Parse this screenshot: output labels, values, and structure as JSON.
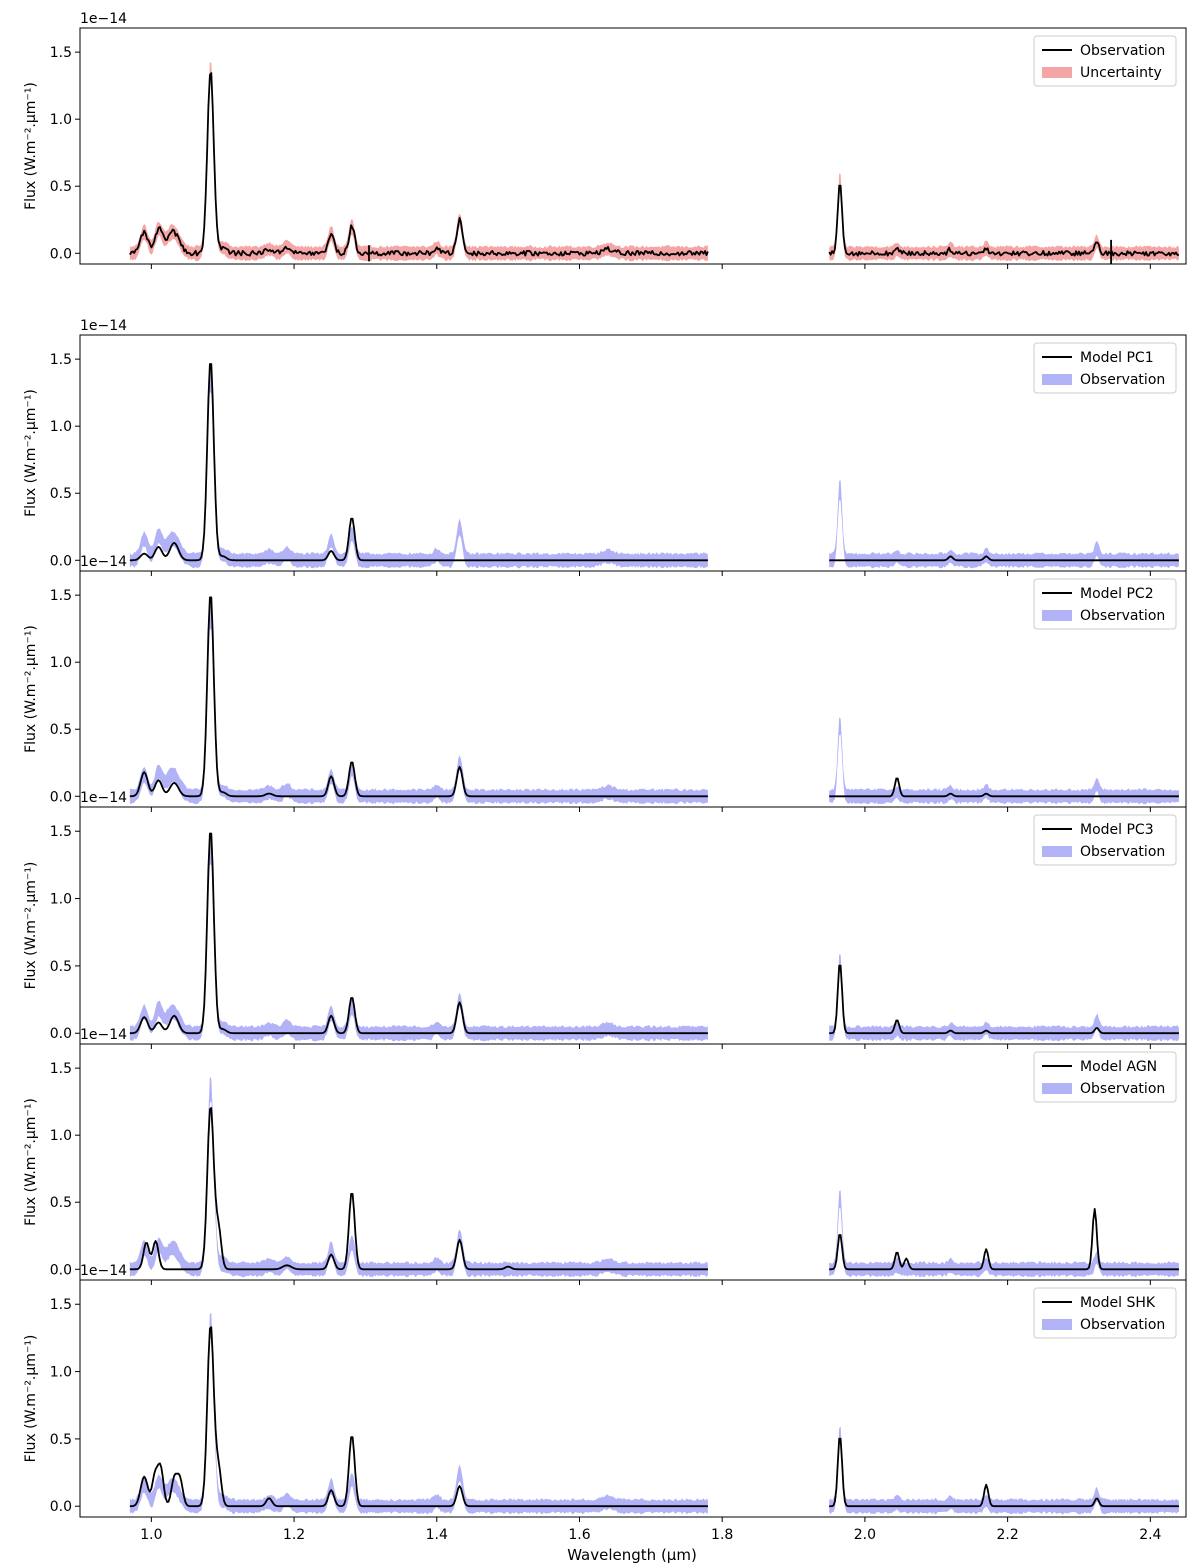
{
  "figure": {
    "xlabel": "Wavelength (μm)",
    "ylabel": "Flux (W.m⁻².μm⁻¹)",
    "offset_text": "1e−14"
  },
  "chart_data": [
    {
      "type": "line",
      "panel": "observation",
      "xlim": [
        0.9,
        2.45
      ],
      "ylim": [
        -0.08,
        1.68
      ],
      "yscale": "1e-14",
      "xticks": [
        1.0,
        1.2,
        1.4,
        1.6,
        1.8,
        2.0,
        2.2,
        2.4
      ],
      "xtick_labels": [
        "1.0",
        "1.2",
        "1.4",
        "1.6",
        "1.8",
        "2.0",
        "2.2",
        "2.4"
      ],
      "show_xtick_labels": false,
      "yticks": [
        0.0,
        0.5,
        1.0,
        1.5
      ],
      "ytick_labels": [
        "0.0",
        "0.5",
        "1.0",
        "1.5"
      ],
      "legend": {
        "position": "top-right",
        "entries": [
          {
            "label": "Observation",
            "kind": "line",
            "color": "#000000"
          },
          {
            "label": "Uncertainty",
            "kind": "band",
            "color": "#f4a6a6"
          }
        ]
      },
      "band_color": "#f4a6a6",
      "band_halfwidth": 0.06,
      "segments": [
        [
          0.97,
          1.78
        ],
        [
          1.95,
          2.44
        ]
      ],
      "series": [
        {
          "name": "Observation",
          "color": "#000000",
          "peaks": [
            [
              0.99,
              0.16,
              0.005
            ],
            [
              1.01,
              0.17,
              0.005
            ],
            [
              1.03,
              0.16,
              0.009
            ],
            [
              1.083,
              1.37,
              0.0045
            ],
            [
              1.1,
              0.04,
              0.006
            ],
            [
              1.165,
              0.03,
              0.006
            ],
            [
              1.19,
              0.05,
              0.005
            ],
            [
              1.252,
              0.15,
              0.004
            ],
            [
              1.281,
              0.2,
              0.004
            ],
            [
              1.4,
              0.04,
              0.004
            ],
            [
              1.432,
              0.25,
              0.004
            ],
            [
              1.64,
              0.03,
              0.008
            ],
            [
              1.965,
              0.55,
              0.003
            ],
            [
              2.045,
              0.03,
              0.003
            ],
            [
              2.12,
              0.03,
              0.003
            ],
            [
              2.17,
              0.04,
              0.003
            ],
            [
              2.325,
              0.09,
              0.003
            ]
          ],
          "noise": 0.018,
          "spikes": [
            [
              1.305,
              0.06
            ],
            [
              2.345,
              0.1
            ]
          ]
        }
      ]
    },
    {
      "type": "line",
      "panel": "model-pc1",
      "xlim": [
        0.9,
        2.45
      ],
      "ylim": [
        -0.08,
        1.68
      ],
      "yscale": "1e-14",
      "xticks": [
        1.0,
        1.2,
        1.4,
        1.6,
        1.8,
        2.0,
        2.2,
        2.4
      ],
      "xtick_labels": [
        "1.0",
        "1.2",
        "1.4",
        "1.6",
        "1.8",
        "2.0",
        "2.2",
        "2.4"
      ],
      "show_xtick_labels": false,
      "yticks": [
        0.0,
        0.5,
        1.0,
        1.5
      ],
      "ytick_labels": [
        "0.0",
        "0.5",
        "1.0",
        "1.5"
      ],
      "legend": {
        "position": "top-right",
        "entries": [
          {
            "label": "Model PC1",
            "kind": "line",
            "color": "#000000"
          },
          {
            "label": "Observation",
            "kind": "band",
            "color": "#b2b2f6"
          }
        ]
      },
      "band_color": "#b2b2f6",
      "band_halfwidth": 0.06,
      "segments": [
        [
          0.97,
          1.78
        ],
        [
          1.95,
          2.44
        ]
      ],
      "series": [
        {
          "name": "Model PC1",
          "color": "#000000",
          "peaks": [
            [
              0.99,
              0.05,
              0.005
            ],
            [
              1.01,
              0.1,
              0.005
            ],
            [
              1.032,
              0.13,
              0.006
            ],
            [
              1.083,
              1.5,
              0.0045
            ],
            [
              1.1,
              0.03,
              0.005
            ],
            [
              1.252,
              0.07,
              0.004
            ],
            [
              1.281,
              0.32,
              0.004
            ],
            [
              2.12,
              0.03,
              0.003
            ],
            [
              2.17,
              0.03,
              0.003
            ]
          ],
          "noise": 0,
          "spikes": []
        }
      ]
    },
    {
      "type": "line",
      "panel": "model-pc2",
      "xlim": [
        0.9,
        2.45
      ],
      "ylim": [
        -0.08,
        1.68
      ],
      "yscale": "1e-14",
      "xticks": [
        1.0,
        1.2,
        1.4,
        1.6,
        1.8,
        2.0,
        2.2,
        2.4
      ],
      "xtick_labels": [
        "1.0",
        "1.2",
        "1.4",
        "1.6",
        "1.8",
        "2.0",
        "2.2",
        "2.4"
      ],
      "show_xtick_labels": false,
      "yticks": [
        0.0,
        0.5,
        1.0,
        1.5
      ],
      "ytick_labels": [
        "0.0",
        "0.5",
        "1.0",
        "1.5"
      ],
      "legend": {
        "position": "top-right",
        "entries": [
          {
            "label": "Model PC2",
            "kind": "line",
            "color": "#000000"
          },
          {
            "label": "Observation",
            "kind": "band",
            "color": "#b2b2f6"
          }
        ]
      },
      "band_color": "#b2b2f6",
      "band_halfwidth": 0.06,
      "segments": [
        [
          0.97,
          1.78
        ],
        [
          1.95,
          2.44
        ]
      ],
      "series": [
        {
          "name": "Model PC2",
          "color": "#000000",
          "peaks": [
            [
              0.99,
              0.18,
              0.005
            ],
            [
              1.01,
              0.12,
              0.005
            ],
            [
              1.032,
              0.1,
              0.006
            ],
            [
              1.083,
              1.52,
              0.0045
            ],
            [
              1.1,
              0.03,
              0.005
            ],
            [
              1.165,
              0.02,
              0.005
            ],
            [
              1.252,
              0.15,
              0.004
            ],
            [
              1.281,
              0.26,
              0.004
            ],
            [
              1.432,
              0.22,
              0.004
            ],
            [
              2.045,
              0.14,
              0.003
            ],
            [
              2.12,
              0.02,
              0.003
            ],
            [
              2.17,
              0.02,
              0.003
            ]
          ],
          "noise": 0,
          "spikes": []
        }
      ]
    },
    {
      "type": "line",
      "panel": "model-pc3",
      "xlim": [
        0.9,
        2.45
      ],
      "ylim": [
        -0.08,
        1.68
      ],
      "yscale": "1e-14",
      "xticks": [
        1.0,
        1.2,
        1.4,
        1.6,
        1.8,
        2.0,
        2.2,
        2.4
      ],
      "xtick_labels": [
        "1.0",
        "1.2",
        "1.4",
        "1.6",
        "1.8",
        "2.0",
        "2.2",
        "2.4"
      ],
      "show_xtick_labels": false,
      "yticks": [
        0.0,
        0.5,
        1.0,
        1.5
      ],
      "ytick_labels": [
        "0.0",
        "0.5",
        "1.0",
        "1.5"
      ],
      "legend": {
        "position": "top-right",
        "entries": [
          {
            "label": "Model PC3",
            "kind": "line",
            "color": "#000000"
          },
          {
            "label": "Observation",
            "kind": "band",
            "color": "#b2b2f6"
          }
        ]
      },
      "band_color": "#b2b2f6",
      "band_halfwidth": 0.06,
      "segments": [
        [
          0.97,
          1.78
        ],
        [
          1.95,
          2.44
        ]
      ],
      "series": [
        {
          "name": "Model PC3",
          "color": "#000000",
          "peaks": [
            [
              0.99,
              0.12,
              0.005
            ],
            [
              1.01,
              0.08,
              0.005
            ],
            [
              1.032,
              0.13,
              0.006
            ],
            [
              1.083,
              1.52,
              0.0045
            ],
            [
              1.1,
              0.03,
              0.005
            ],
            [
              1.252,
              0.13,
              0.004
            ],
            [
              1.281,
              0.27,
              0.004
            ],
            [
              1.432,
              0.23,
              0.004
            ],
            [
              1.965,
              0.53,
              0.003
            ],
            [
              2.045,
              0.1,
              0.003
            ],
            [
              2.12,
              0.02,
              0.003
            ],
            [
              2.17,
              0.02,
              0.003
            ],
            [
              2.325,
              0.04,
              0.003
            ]
          ],
          "noise": 0,
          "spikes": []
        }
      ]
    },
    {
      "type": "line",
      "panel": "model-agn",
      "xlim": [
        0.9,
        2.45
      ],
      "ylim": [
        -0.08,
        1.68
      ],
      "yscale": "1e-14",
      "xticks": [
        1.0,
        1.2,
        1.4,
        1.6,
        1.8,
        2.0,
        2.2,
        2.4
      ],
      "xtick_labels": [
        "1.0",
        "1.2",
        "1.4",
        "1.6",
        "1.8",
        "2.0",
        "2.2",
        "2.4"
      ],
      "show_xtick_labels": false,
      "yticks": [
        0.0,
        0.5,
        1.0,
        1.5
      ],
      "ytick_labels": [
        "0.0",
        "0.5",
        "1.0",
        "1.5"
      ],
      "legend": {
        "position": "top-right",
        "entries": [
          {
            "label": "Model AGN",
            "kind": "line",
            "color": "#000000"
          },
          {
            "label": "Observation",
            "kind": "band",
            "color": "#b2b2f6"
          }
        ]
      },
      "band_color": "#b2b2f6",
      "band_halfwidth": 0.06,
      "segments": [
        [
          0.97,
          1.78
        ],
        [
          1.95,
          2.44
        ]
      ],
      "series": [
        {
          "name": "Model AGN",
          "color": "#000000",
          "peaks": [
            [
              0.993,
              0.2,
              0.004
            ],
            [
              1.006,
              0.21,
              0.004
            ],
            [
              1.083,
              1.22,
              0.0045
            ],
            [
              1.094,
              0.3,
              0.004
            ],
            [
              1.19,
              0.03,
              0.006
            ],
            [
              1.252,
              0.11,
              0.004
            ],
            [
              1.281,
              0.58,
              0.004
            ],
            [
              1.432,
              0.22,
              0.004
            ],
            [
              1.5,
              0.02,
              0.004
            ],
            [
              1.965,
              0.27,
              0.003
            ],
            [
              2.045,
              0.13,
              0.003
            ],
            [
              2.058,
              0.08,
              0.003
            ],
            [
              2.17,
              0.15,
              0.003
            ],
            [
              2.322,
              0.45,
              0.003
            ]
          ],
          "noise": 0,
          "spikes": []
        }
      ]
    },
    {
      "type": "line",
      "panel": "model-shk",
      "xlim": [
        0.9,
        2.45
      ],
      "ylim": [
        -0.08,
        1.68
      ],
      "yscale": "1e-14",
      "xticks": [
        1.0,
        1.2,
        1.4,
        1.6,
        1.8,
        2.0,
        2.2,
        2.4
      ],
      "xtick_labels": [
        "1.0",
        "1.2",
        "1.4",
        "1.6",
        "1.8",
        "2.0",
        "2.2",
        "2.4"
      ],
      "show_xtick_labels": true,
      "yticks": [
        0.0,
        0.5,
        1.0,
        1.5
      ],
      "ytick_labels": [
        "0.0",
        "0.5",
        "1.0",
        "1.5"
      ],
      "legend": {
        "position": "top-right",
        "entries": [
          {
            "label": "Model SHK",
            "kind": "line",
            "color": "#000000"
          },
          {
            "label": "Observation",
            "kind": "band",
            "color": "#b2b2f6"
          }
        ]
      },
      "band_color": "#b2b2f6",
      "band_halfwidth": 0.06,
      "segments": [
        [
          0.97,
          1.78
        ],
        [
          1.95,
          2.44
        ]
      ],
      "series": [
        {
          "name": "Model SHK",
          "color": "#000000",
          "peaks": [
            [
              0.99,
              0.22,
              0.005
            ],
            [
              1.005,
              0.22,
              0.004
            ],
            [
              1.013,
              0.28,
              0.004
            ],
            [
              1.032,
              0.2,
              0.004
            ],
            [
              1.04,
              0.2,
              0.004
            ],
            [
              1.083,
              1.35,
              0.0045
            ],
            [
              1.094,
              0.28,
              0.004
            ],
            [
              1.165,
              0.06,
              0.004
            ],
            [
              1.252,
              0.12,
              0.004
            ],
            [
              1.281,
              0.53,
              0.004
            ],
            [
              1.432,
              0.15,
              0.004
            ],
            [
              1.965,
              0.53,
              0.003
            ],
            [
              2.17,
              0.16,
              0.003
            ],
            [
              2.325,
              0.06,
              0.003
            ]
          ],
          "noise": 0,
          "spikes": []
        }
      ]
    }
  ]
}
